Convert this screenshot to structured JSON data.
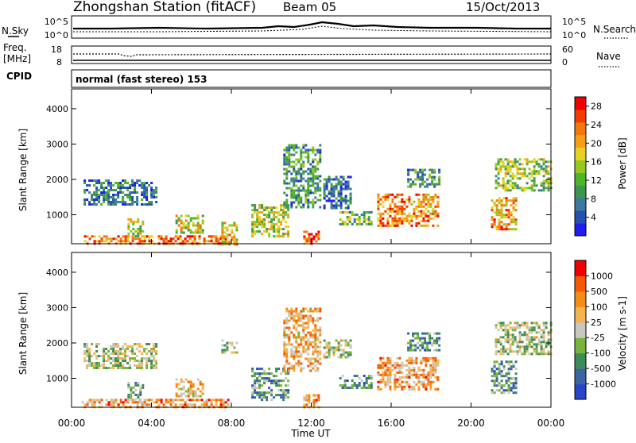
{
  "header": {
    "title": "Zhongshan Station (fitACF)",
    "beam": "Beam 05",
    "date": "15/Oct/2013"
  },
  "noise_panel": {
    "left_label": "N.Sky",
    "left_ticks": [
      "10^5",
      "10^0"
    ],
    "right_ticks": [
      "10^5",
      "10^0"
    ],
    "right_label": "N.Search"
  },
  "freq_panel": {
    "left_label_line1": "Freq.",
    "left_label_line2": "[MHz]",
    "left_ticks": [
      "18",
      "8"
    ],
    "right_ticks": [
      "60",
      "0"
    ],
    "right_label": "Nave"
  },
  "cpid": {
    "label": "CPID",
    "text": "normal (fast stereo) 153"
  },
  "chart_data": [
    {
      "type": "heatmap",
      "quantity": "power",
      "xlabel": "Time UT",
      "ylabel": "Slant Range [km]",
      "xlim": [
        0,
        24
      ],
      "ylim": [
        180,
        4560
      ],
      "x_ticks": [
        "00:00",
        "04:00",
        "08:00",
        "12:00",
        "16:00",
        "20:00",
        "00:00"
      ],
      "y_ticks": [
        1000,
        2000,
        3000,
        4000
      ],
      "colorbar": {
        "label": "Power [dB]",
        "ticks": [
          "4",
          "8",
          "12",
          "16",
          "20",
          "24",
          "28"
        ],
        "range": [
          0,
          30
        ],
        "colors": [
          "#1e1ef0",
          "#2850b4",
          "#3c78a0",
          "#3c9650",
          "#50b428",
          "#96c81e",
          "#e6d21e",
          "#f5a014",
          "#f5780a",
          "#f53c00",
          "#f00000"
        ]
      },
      "echo_regions": [
        {
          "t": [
            0.5,
            7.8
          ],
          "r": [
            180,
            420
          ],
          "level": 0.78
        },
        {
          "t": [
            0.6,
            4.2
          ],
          "r": [
            1300,
            2000
          ],
          "level": 0.22
        },
        {
          "t": [
            2.8,
            3.6
          ],
          "r": [
            400,
            900
          ],
          "level": 0.5
        },
        {
          "t": [
            5.2,
            6.6
          ],
          "r": [
            500,
            1000
          ],
          "level": 0.55
        },
        {
          "t": [
            7.5,
            8.3
          ],
          "r": [
            180,
            800
          ],
          "level": 0.62
        },
        {
          "t": [
            9.0,
            10.8
          ],
          "r": [
            400,
            1300
          ],
          "level": 0.5
        },
        {
          "t": [
            10.6,
            12.4
          ],
          "r": [
            1200,
            3000
          ],
          "level": 0.3
        },
        {
          "t": [
            11.6,
            12.4
          ],
          "r": [
            180,
            550
          ],
          "level": 0.85
        },
        {
          "t": [
            12.6,
            14.0
          ],
          "r": [
            1200,
            2100
          ],
          "level": 0.2
        },
        {
          "t": [
            13.4,
            15.0
          ],
          "r": [
            700,
            1100
          ],
          "level": 0.4
        },
        {
          "t": [
            15.3,
            18.4
          ],
          "r": [
            700,
            1600
          ],
          "level": 0.74
        },
        {
          "t": [
            16.8,
            18.4
          ],
          "r": [
            1800,
            2300
          ],
          "level": 0.3
        },
        {
          "t": [
            21.0,
            22.2
          ],
          "r": [
            600,
            1500
          ],
          "level": 0.7
        },
        {
          "t": [
            21.2,
            24.0
          ],
          "r": [
            1700,
            2600
          ],
          "level": 0.45
        }
      ]
    },
    {
      "type": "heatmap",
      "quantity": "velocity",
      "xlabel": "Time UT",
      "ylabel": "Slant Range [km]",
      "xlim": [
        0,
        24
      ],
      "ylim": [
        180,
        4560
      ],
      "x_ticks": [
        "00:00",
        "04:00",
        "08:00",
        "12:00",
        "16:00",
        "20:00",
        "00:00"
      ],
      "y_ticks": [
        1000,
        2000,
        3000,
        4000
      ],
      "colorbar": {
        "label": "Velocity [m s-1]",
        "ticks": [
          "1000",
          "500",
          "100",
          "25",
          "-25",
          "-100",
          "-500",
          "-1000"
        ],
        "colors": [
          "#2846c8",
          "#3c64a0",
          "#3c8c5a",
          "#78b43c",
          "#c8c8c0",
          "#f5b450",
          "#f58c14",
          "#f55a00",
          "#f00000"
        ]
      },
      "echo_regions": [
        {
          "t": [
            0.5,
            7.8
          ],
          "r": [
            180,
            420
          ],
          "level": 0.7
        },
        {
          "t": [
            0.6,
            4.2
          ],
          "r": [
            1300,
            2000
          ],
          "level": 0.45
        },
        {
          "t": [
            2.8,
            3.6
          ],
          "r": [
            400,
            900
          ],
          "level": 0.35
        },
        {
          "t": [
            5.2,
            6.6
          ],
          "r": [
            500,
            1000
          ],
          "level": 0.6
        },
        {
          "t": [
            7.5,
            8.3
          ],
          "r": [
            1700,
            2100
          ],
          "level": 0.45
        },
        {
          "t": [
            9.0,
            10.8
          ],
          "r": [
            400,
            1300
          ],
          "level": 0.3
        },
        {
          "t": [
            10.6,
            12.4
          ],
          "r": [
            1200,
            3000
          ],
          "level": 0.65
        },
        {
          "t": [
            11.6,
            12.4
          ],
          "r": [
            180,
            550
          ],
          "level": 0.72
        },
        {
          "t": [
            12.6,
            14.0
          ],
          "r": [
            1600,
            2100
          ],
          "level": 0.45
        },
        {
          "t": [
            13.4,
            15.0
          ],
          "r": [
            700,
            1100
          ],
          "level": 0.3
        },
        {
          "t": [
            15.3,
            18.4
          ],
          "r": [
            700,
            1600
          ],
          "level": 0.68
        },
        {
          "t": [
            16.8,
            18.4
          ],
          "r": [
            1800,
            2300
          ],
          "level": 0.3
        },
        {
          "t": [
            21.0,
            22.2
          ],
          "r": [
            600,
            1500
          ],
          "level": 0.28
        },
        {
          "t": [
            21.2,
            24.0
          ],
          "r": [
            1700,
            2600
          ],
          "level": 0.45
        }
      ]
    }
  ]
}
